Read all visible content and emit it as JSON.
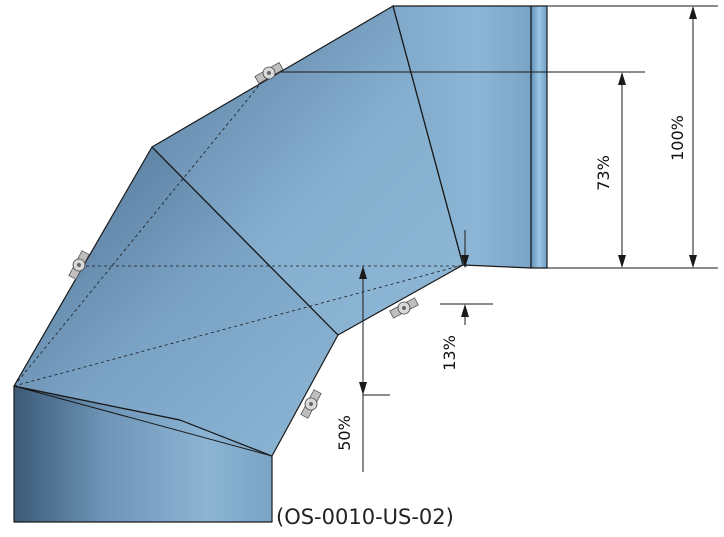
{
  "diagram": {
    "product_code": "(OS-0010-US-02)",
    "dimensions": {
      "full_height": "100%",
      "upper_height": "73%",
      "lower_offset": "13%",
      "bottom_offset": "50%"
    },
    "colors": {
      "pipe_light": "#8fb8d6",
      "pipe_mid": "#6e96b8",
      "pipe_dark": "#3f5f7f",
      "collar": "#7fb0d4",
      "line": "#1a1a1a",
      "clamp": "#c9c9c9"
    },
    "icons": [
      "clamp-icon"
    ]
  }
}
